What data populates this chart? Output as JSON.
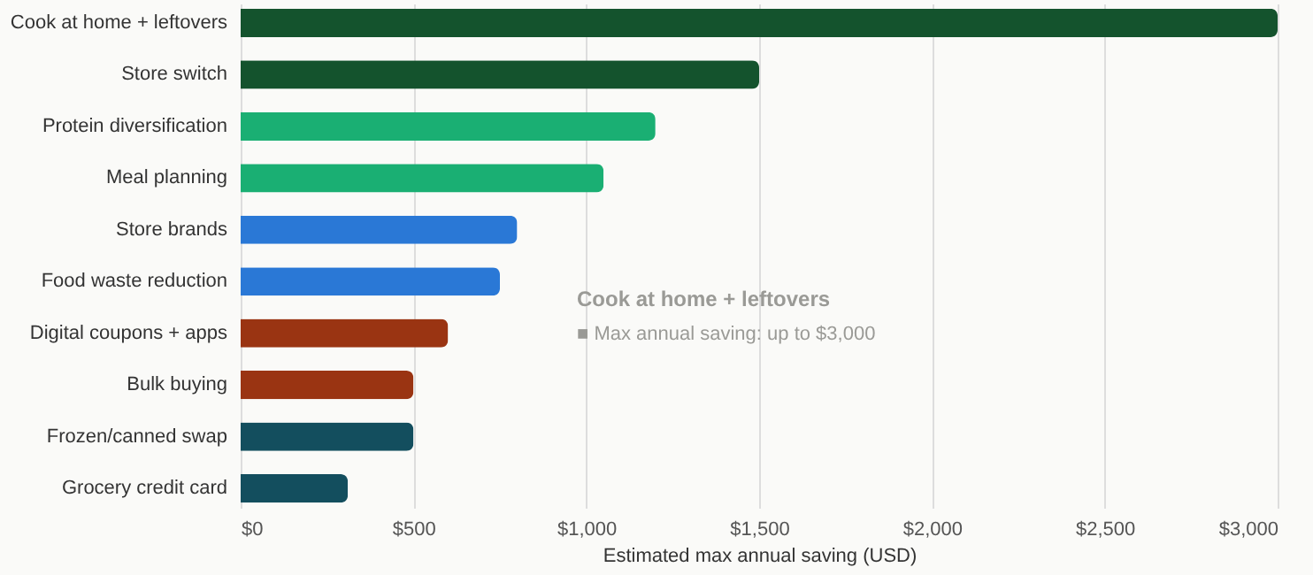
{
  "chart_data": {
    "type": "bar",
    "orientation": "horizontal",
    "xlabel": "Estimated max annual saving (USD)",
    "categories": [
      "Cook at home + leftovers",
      "Store switch",
      "Protein diversification",
      "Meal planning",
      "Store brands",
      "Food waste reduction",
      "Digital coupons + apps",
      "Bulk buying",
      "Frozen/canned swap",
      "Grocery credit card"
    ],
    "values": [
      3000,
      1500,
      1200,
      1050,
      800,
      750,
      600,
      500,
      500,
      310
    ],
    "colors": [
      "#14532d",
      "#14532d",
      "#1aaf73",
      "#1aaf73",
      "#2a78d6",
      "#2a78d6",
      "#9a3412",
      "#9a3412",
      "#134e5e",
      "#134e5e"
    ],
    "xlim": [
      0,
      3000
    ],
    "xticks": [
      {
        "value": 0,
        "label": "$0"
      },
      {
        "value": 500,
        "label": "$500"
      },
      {
        "value": 1000,
        "label": "$1,000"
      },
      {
        "value": 1500,
        "label": "$1,500"
      },
      {
        "value": 2000,
        "label": "$2,000"
      },
      {
        "value": 2500,
        "label": "$2,500"
      },
      {
        "value": 3000,
        "label": "$3,000"
      }
    ],
    "grid": "x",
    "legend": false,
    "annotations": [
      "Cook at home + leftovers",
      "■  Max annual saving: up to $3,000"
    ]
  }
}
